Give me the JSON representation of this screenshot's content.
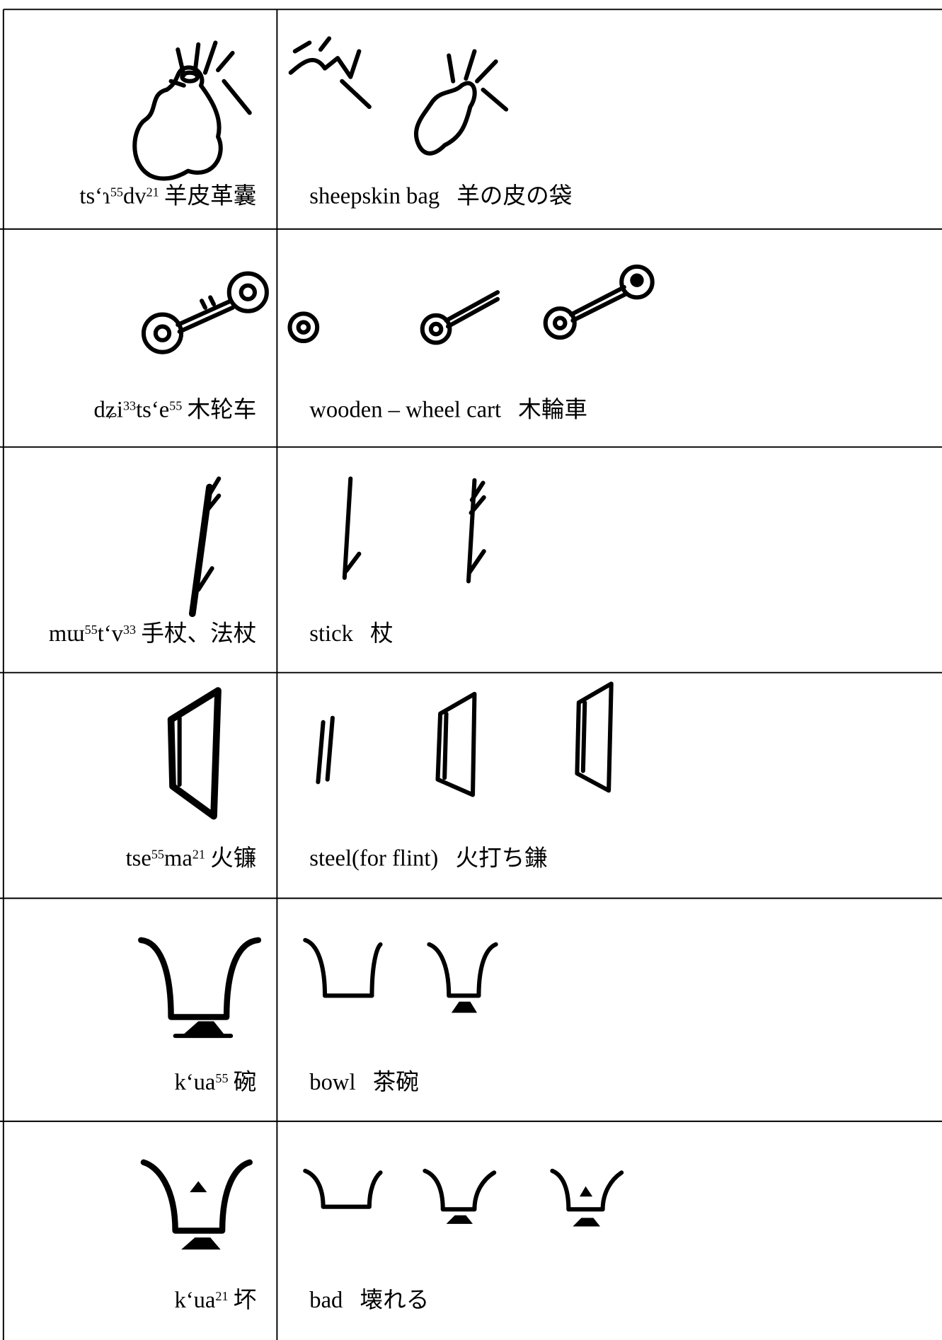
{
  "rows": [
    {
      "pronunciation": [
        {
          "text": "ts‘ɿ"
        },
        {
          "tone": "55"
        },
        {
          "text": "dv"
        },
        {
          "tone": "21"
        }
      ],
      "chinese": "羊皮革囊",
      "english": "sheepskin bag",
      "japanese": "羊の皮の袋"
    },
    {
      "pronunciation": [
        {
          "text": "dʑi"
        },
        {
          "tone": "33"
        },
        {
          "text": "ts‘e"
        },
        {
          "tone": "55"
        }
      ],
      "chinese": "木轮车",
      "english": "wooden – wheel cart",
      "japanese": "木輪車"
    },
    {
      "pronunciation": [
        {
          "text": "mɯ"
        },
        {
          "tone": "55"
        },
        {
          "text": "t‘v"
        },
        {
          "tone": "33"
        }
      ],
      "chinese": "手杖、法杖",
      "english": "stick",
      "japanese": "杖"
    },
    {
      "pronunciation": [
        {
          "text": "tse"
        },
        {
          "tone": "55"
        },
        {
          "text": "ma"
        },
        {
          "tone": "21"
        }
      ],
      "chinese": "火镰",
      "english": "steel(for flint)",
      "japanese": "火打ち鎌"
    },
    {
      "pronunciation": [
        {
          "text": "k‘ua"
        },
        {
          "tone": "55"
        }
      ],
      "chinese": "碗",
      "english": "bowl",
      "japanese": "茶碗"
    },
    {
      "pronunciation": [
        {
          "text": "k‘ua"
        },
        {
          "tone": "21"
        }
      ],
      "chinese": "坏",
      "english": "bad",
      "japanese": "壊れる"
    }
  ]
}
